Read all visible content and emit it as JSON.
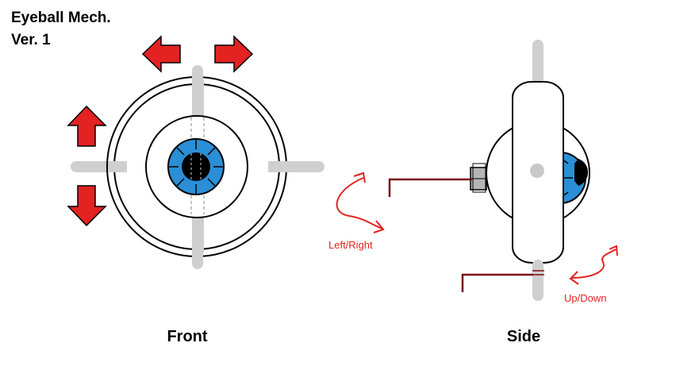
{
  "title": {
    "line1": "Eyeball Mech.",
    "line2": "Ver. 1"
  },
  "views": {
    "front_label": "Front",
    "side_label": "Side"
  },
  "annotations": {
    "left_right": "Left/Right",
    "up_down": "Up/Down"
  },
  "colors": {
    "arrow_red": "#e32222",
    "iris_blue": "#2a8fd6",
    "annotation_red": "#e32222",
    "wire_dark_red": "#7a0a14",
    "rod_gray": "#cfcfcf",
    "nut_gray": "#b5b5b5",
    "outline": "#000000"
  },
  "icons": {
    "move_left": "arrow-left-icon",
    "move_right": "arrow-right-icon",
    "move_up": "arrow-up-icon",
    "move_down": "arrow-down-icon"
  }
}
